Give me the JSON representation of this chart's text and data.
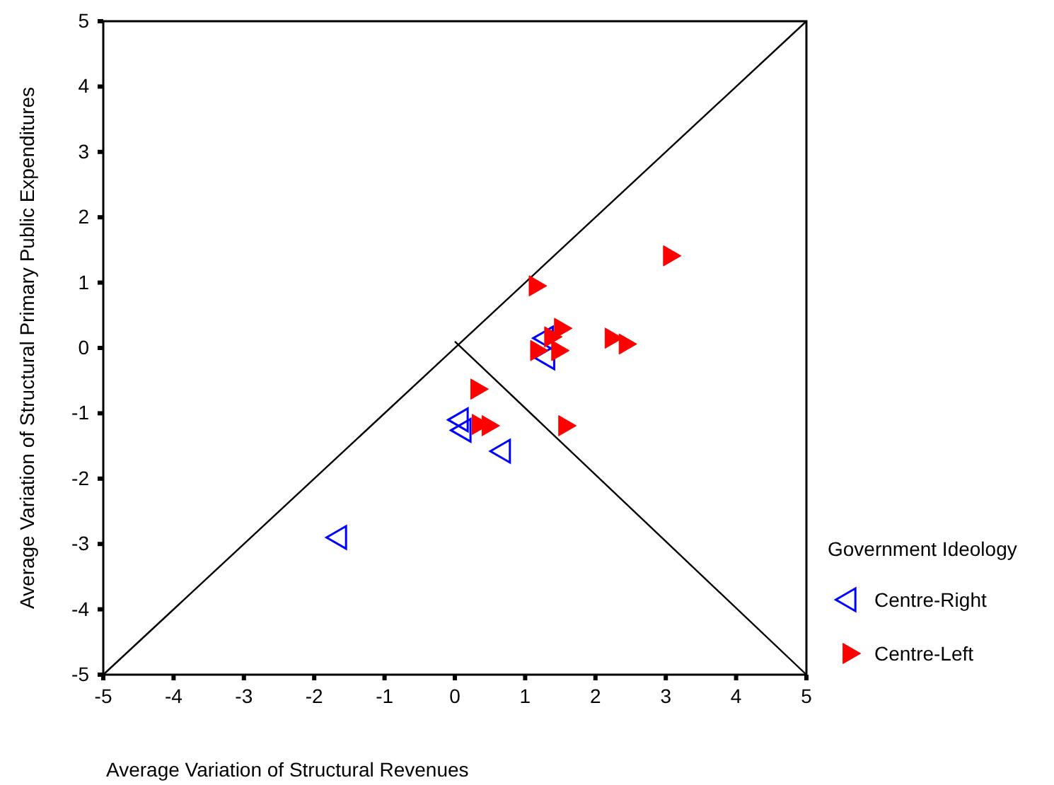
{
  "chart_data": {
    "type": "scatter",
    "xlabel": "Average Variation of Structural Revenues",
    "ylabel": "Average Variation of Structural Primary Public Expenditures",
    "legend_title": "Government Ideology",
    "legend": "right",
    "xlim": [
      -5,
      5
    ],
    "ylim": [
      -5,
      5
    ],
    "xticks": [
      -5,
      -4,
      -3,
      -2,
      -1,
      0,
      1,
      2,
      3,
      4,
      5
    ],
    "yticks": [
      -5,
      -4,
      -3,
      -2,
      -1,
      0,
      1,
      2,
      3,
      4,
      5
    ],
    "grid": false,
    "series": [
      {
        "type": "line",
        "color": "#000000",
        "x": [
          -5,
          5
        ],
        "values": [
          -5,
          5
        ]
      },
      {
        "type": "line",
        "color": "#000000",
        "x": [
          0,
          5
        ],
        "values": [
          0.1,
          -5
        ]
      },
      {
        "name": "Centre-Right",
        "color": "#0000ff",
        "marker": "triangle",
        "x": [
          1.3,
          1.32,
          0.09,
          0.13,
          0.69,
          -1.64
        ],
        "values": [
          0.15,
          -0.15,
          -1.1,
          -1.26,
          -1.58,
          -2.9
        ]
      },
      {
        "name": "Centre-Left",
        "color": "#ff0000",
        "marker": "triangle",
        "x": [
          3.05,
          1.14,
          1.5,
          1.36,
          2.22,
          2.42,
          1.16,
          1.46,
          0.31,
          0.33,
          0.47,
          1.56
        ],
        "values": [
          1.41,
          0.95,
          0.3,
          0.17,
          0.15,
          0.06,
          -0.04,
          -0.04,
          -0.63,
          -1.17,
          -1.19,
          -1.19
        ]
      }
    ]
  }
}
